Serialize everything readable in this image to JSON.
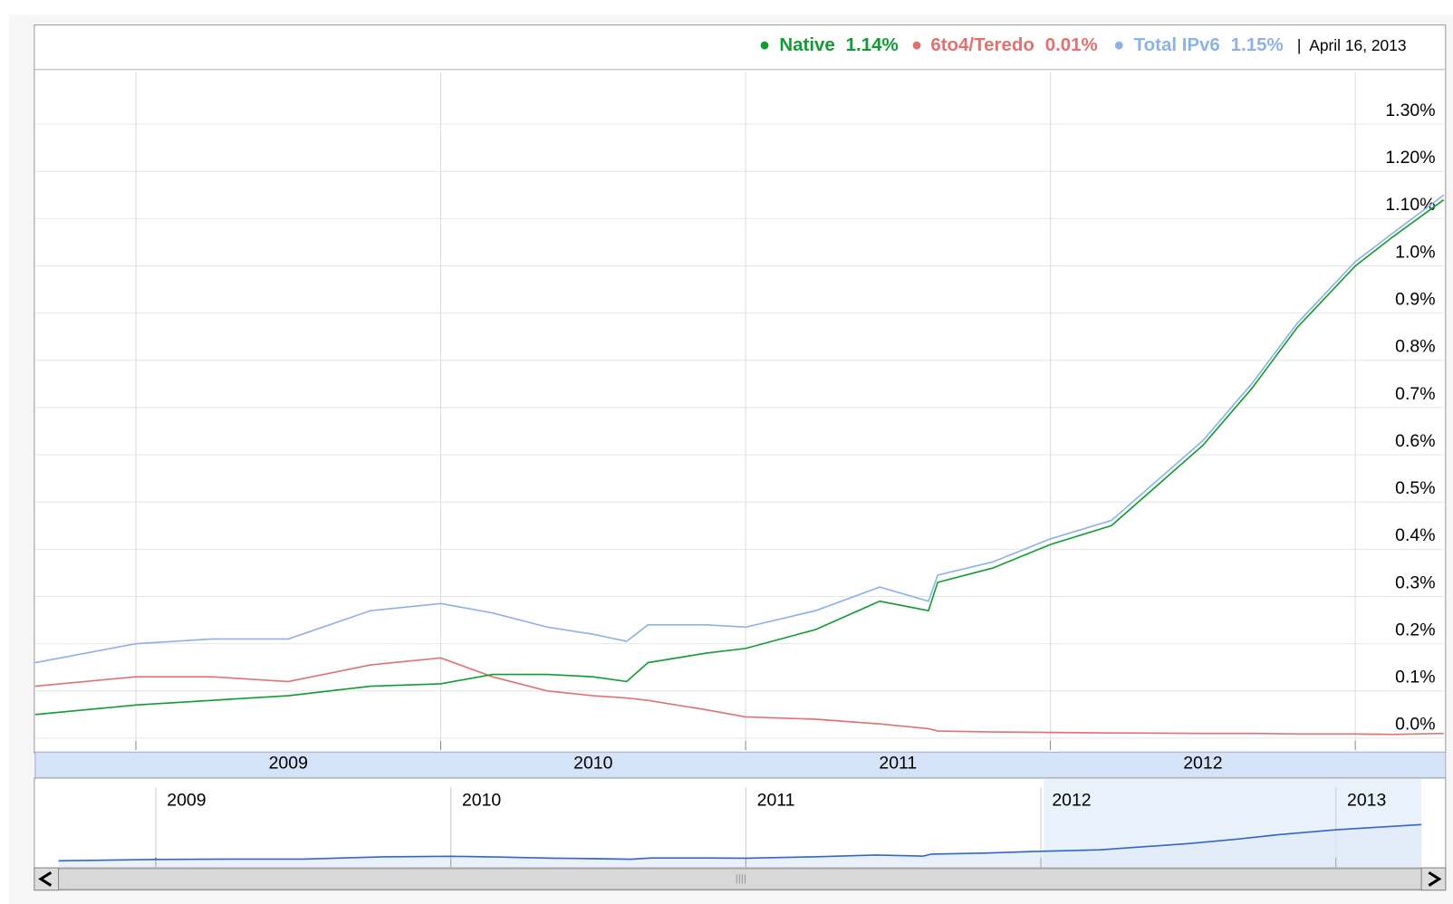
{
  "chart_data": {
    "type": "line",
    "date": "April 16, 2013",
    "x": [
      2008.67,
      2009.0,
      2009.25,
      2009.5,
      2009.77,
      2010.0,
      2010.17,
      2010.35,
      2010.5,
      2010.61,
      2010.68,
      2010.87,
      2011.0,
      2011.23,
      2011.44,
      2011.6,
      2011.63,
      2011.81,
      2012.0,
      2012.2,
      2012.5,
      2012.66,
      2012.81,
      2013.0,
      2013.12,
      2013.29
    ],
    "xlim": [
      2008.67,
      2013.29
    ],
    "xticks": [
      2009,
      2010,
      2011,
      2012,
      2013
    ],
    "ylim": [
      -0.006,
      1.41
    ],
    "yticks": [
      {
        "value": 0,
        "label": "0.0%"
      },
      {
        "value": 0.1,
        "label": "0.1%"
      },
      {
        "value": 0.2,
        "label": "0.2%"
      },
      {
        "value": 0.3,
        "label": "0.3%"
      },
      {
        "value": 0.4,
        "label": "0.4%"
      },
      {
        "value": 0.5,
        "label": "0.5%"
      },
      {
        "value": 0.6,
        "label": "0.6%"
      },
      {
        "value": 0.7,
        "label": "0.7%"
      },
      {
        "value": 0.8,
        "label": "0.8%"
      },
      {
        "value": 0.9,
        "label": "0.9%"
      },
      {
        "value": 1.0,
        "label": "1.0%"
      },
      {
        "value": 1.1,
        "label": "1.10%"
      },
      {
        "value": 1.2,
        "label": "1.20%"
      },
      {
        "value": 1.3,
        "label": "1.30%"
      }
    ],
    "grid": true,
    "legend_position": "top-right",
    "series": [
      {
        "name": "Native",
        "current": {
          "value": 1.14,
          "label": "1.14%"
        },
        "color": "#129a35",
        "values": [
          0.05,
          0.07,
          0.08,
          0.09,
          0.11,
          0.115,
          0.135,
          0.135,
          0.13,
          0.12,
          0.16,
          0.18,
          0.19,
          0.23,
          0.29,
          0.27,
          0.33,
          0.36,
          0.41,
          0.45,
          0.62,
          0.74,
          0.87,
          1.0,
          1.06,
          1.14
        ]
      },
      {
        "name": "6to4/Teredo",
        "current": {
          "value": 0.01,
          "label": "0.01%"
        },
        "color": "#e07272",
        "values": [
          0.11,
          0.13,
          0.13,
          0.12,
          0.155,
          0.17,
          0.13,
          0.1,
          0.09,
          0.085,
          0.08,
          0.06,
          0.045,
          0.04,
          0.03,
          0.02,
          0.015,
          0.013,
          0.012,
          0.011,
          0.01,
          0.01,
          0.009,
          0.009,
          0.008,
          0.01
        ]
      },
      {
        "name": "Total IPv6",
        "current": {
          "value": 1.15,
          "label": "1.15%"
        },
        "color": "#8fb1e4",
        "values": [
          0.16,
          0.2,
          0.21,
          0.21,
          0.27,
          0.285,
          0.265,
          0.235,
          0.22,
          0.205,
          0.24,
          0.24,
          0.235,
          0.27,
          0.32,
          0.29,
          0.345,
          0.373,
          0.422,
          0.461,
          0.63,
          0.75,
          0.879,
          1.009,
          1.068,
          1.15
        ]
      }
    ],
    "navigator": {
      "series": 2,
      "color": "#3366cc"
    }
  }
}
